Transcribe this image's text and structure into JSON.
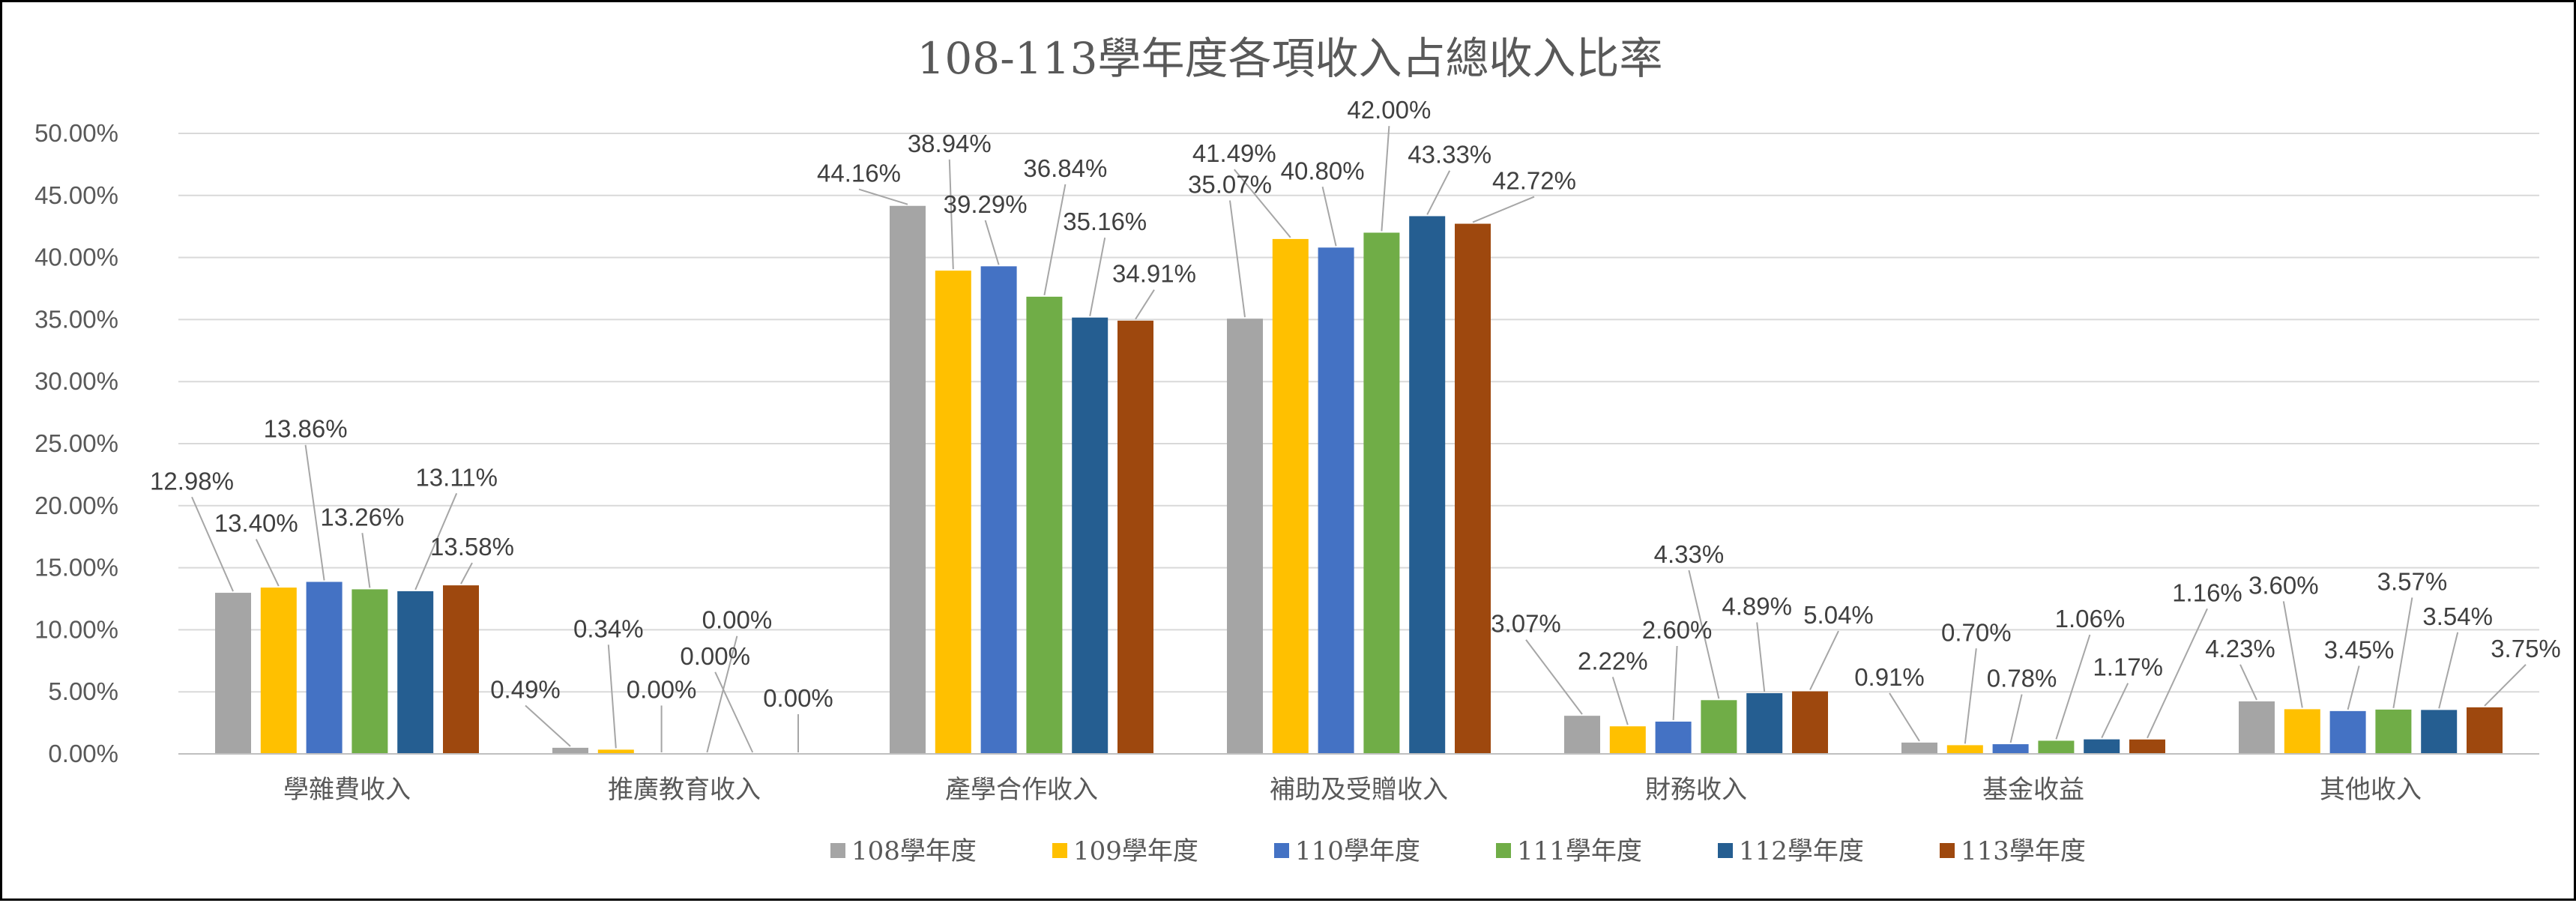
{
  "chart_data": {
    "type": "bar",
    "title": "108-113學年度各項收入占總收入比率",
    "xlabel": "",
    "ylabel": "",
    "ylim": [
      0,
      50
    ],
    "ytick_step": 5,
    "ytick_labels": [
      "0.00%",
      "5.00%",
      "10.00%",
      "15.00%",
      "20.00%",
      "25.00%",
      "30.00%",
      "35.00%",
      "40.00%",
      "45.00%",
      "50.00%"
    ],
    "grid": true,
    "legend_position": "bottom",
    "categories": [
      "學雜費收入",
      "推廣教育收入",
      "產學合作收入",
      "補助及受贈收入",
      "財務收入",
      "基金收益",
      "其他收入"
    ],
    "series": [
      {
        "name": "108學年度",
        "color": "#a5a5a5",
        "values": [
          12.98,
          0.49,
          44.16,
          35.07,
          3.07,
          0.91,
          4.23
        ],
        "labels": [
          "12.98%",
          "0.49%",
          "44.16%",
          "35.07%",
          "3.07%",
          "0.91%",
          "4.23%"
        ]
      },
      {
        "name": "109學年度",
        "color": "#ffc000",
        "values": [
          13.4,
          0.34,
          38.94,
          41.49,
          2.22,
          0.7,
          3.6
        ],
        "labels": [
          "13.40%",
          "0.34%",
          "38.94%",
          "41.49%",
          "2.22%",
          "0.70%",
          "3.60%"
        ]
      },
      {
        "name": "110學年度",
        "color": "#4472c4",
        "values": [
          13.86,
          0.0,
          39.29,
          40.8,
          2.6,
          0.78,
          3.45
        ],
        "labels": [
          "13.86%",
          "0.00%",
          "39.29%",
          "40.80%",
          "2.60%",
          "0.78%",
          "3.45%"
        ]
      },
      {
        "name": "111學年度",
        "color": "#70ad47",
        "values": [
          13.26,
          0.0,
          36.84,
          42.0,
          4.33,
          1.06,
          3.57
        ],
        "labels": [
          "13.26%",
          "0.00%",
          "36.84%",
          "42.00%",
          "4.33%",
          "1.06%",
          "3.57%"
        ]
      },
      {
        "name": "112學年度",
        "color": "#255e91",
        "values": [
          13.11,
          0.0,
          35.16,
          43.33,
          4.89,
          1.17,
          3.54
        ],
        "labels": [
          "13.11%",
          "0.00%",
          "35.16%",
          "43.33%",
          "4.89%",
          "1.17%",
          "3.54%"
        ]
      },
      {
        "name": "113學年度",
        "color": "#9e480e",
        "values": [
          13.58,
          0.0,
          34.91,
          42.72,
          5.04,
          1.16,
          3.75
        ],
        "labels": [
          "13.58%",
          "0.00%",
          "34.91%",
          "42.72%",
          "5.04%",
          "1.16%",
          "3.75%"
        ]
      }
    ]
  }
}
